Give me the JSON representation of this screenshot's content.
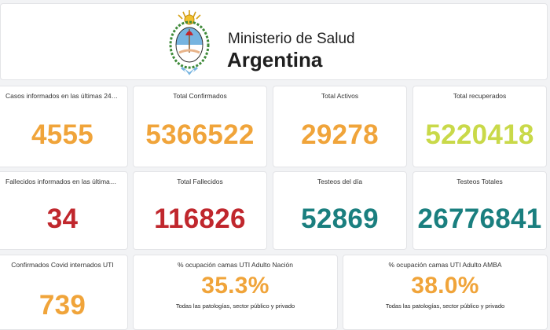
{
  "header": {
    "ministry": "Ministerio de Salud",
    "country": "Argentina",
    "logo_icon": "argentina-coat-of-arms-icon"
  },
  "colors": {
    "orange": "#f0a43a",
    "lime": "#c9d949",
    "red": "#c0272d",
    "teal": "#1a7f7f"
  },
  "stats": {
    "casos_24h": {
      "label": "Casos informados en las últimas 24…",
      "value": "4555"
    },
    "confirmados": {
      "label": "Total Confirmados",
      "value": "5366522"
    },
    "activos": {
      "label": "Total Activos",
      "value": "29278"
    },
    "recuperados": {
      "label": "Total recuperados",
      "value": "5220418"
    },
    "fallecidos_24h": {
      "label": "Fallecidos informados en las última…",
      "value": "34"
    },
    "fallecidos": {
      "label": "Total Fallecidos",
      "value": "116826"
    },
    "testeos_dia": {
      "label": "Testeos del día",
      "value": "52869"
    },
    "testeos_totales": {
      "label": "Testeos Totales",
      "value": "26776841"
    },
    "uti_internados": {
      "label": "Confirmados Covid internados UTI",
      "value": "739"
    },
    "uti_nacion": {
      "label": "% ocupación camas UTI Adulto Nación",
      "value": "35.3%",
      "note": "Todas las patologías, sector público y privado"
    },
    "uti_amba": {
      "label": "% ocupación camas UTI Adulto AMBA",
      "value": "38.0%",
      "note": "Todas las patologías, sector público y privado"
    }
  }
}
